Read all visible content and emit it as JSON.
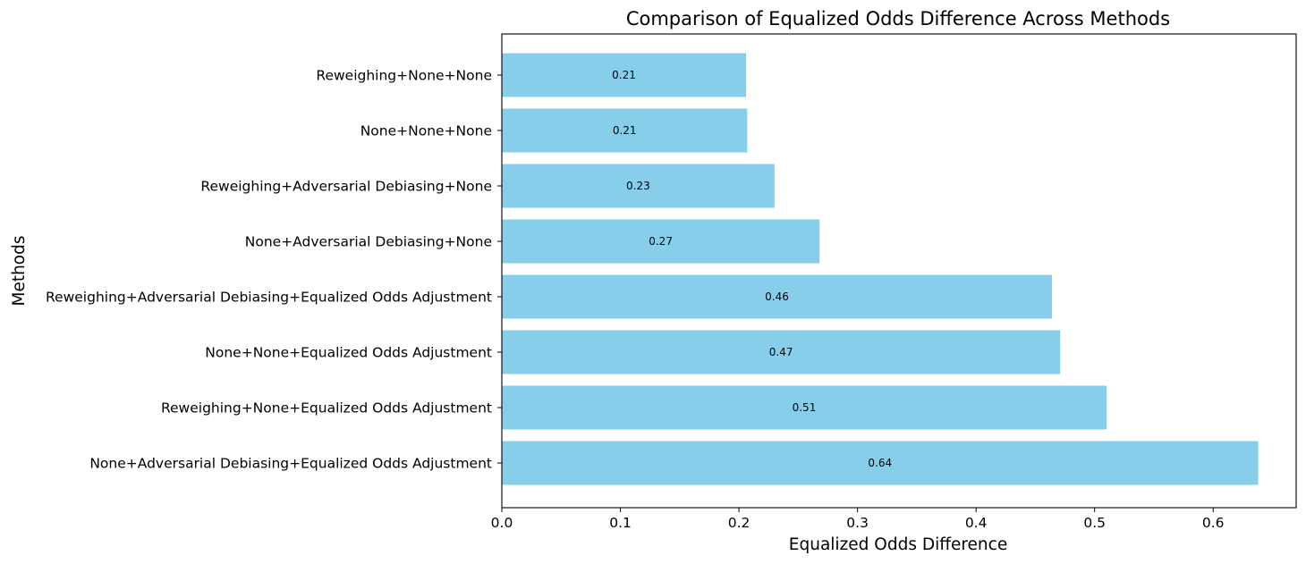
{
  "chart_data": {
    "type": "bar",
    "orientation": "horizontal",
    "title": "Comparison of Equalized Odds Difference Across Methods",
    "xlabel": "Equalized Odds Difference",
    "ylabel": "Methods",
    "xlim": [
      0.0,
      0.67
    ],
    "xticks": [
      "0.0",
      "0.1",
      "0.2",
      "0.3",
      "0.4",
      "0.5",
      "0.6"
    ],
    "bar_color": "#87CEEB",
    "grid": false,
    "categories": [
      "None+Adversarial Debiasing+Equalized Odds Adjustment",
      "Reweighing+None+Equalized Odds Adjustment",
      "None+None+Equalized Odds Adjustment",
      "Reweighing+Adversarial Debiasing+Equalized Odds Adjustment",
      "None+Adversarial Debiasing+None",
      "Reweighing+Adversarial Debiasing+None",
      "None+None+None",
      "Reweighing+None+None"
    ],
    "values": [
      0.638,
      0.51,
      0.471,
      0.464,
      0.268,
      0.23,
      0.207,
      0.206
    ],
    "value_labels": [
      "0.64",
      "0.51",
      "0.47",
      "0.46",
      "0.27",
      "0.23",
      "0.21",
      "0.21"
    ]
  }
}
